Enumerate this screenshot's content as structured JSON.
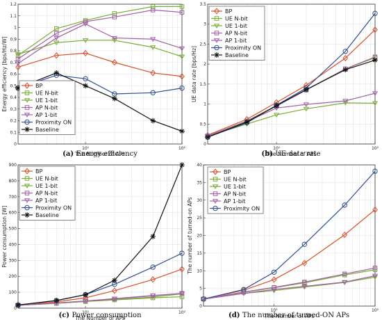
{
  "styles": {
    "BP": {
      "color": "#d7502a",
      "marker": "diamond"
    },
    "UE N-bit": {
      "color": "#77ac30",
      "marker": "square"
    },
    "UE 1-bit": {
      "color": "#77ac30",
      "marker": "tri-down"
    },
    "AP N-bit": {
      "color": "#a05fa6",
      "marker": "square"
    },
    "AP 1-bit": {
      "color": "#a05fa6",
      "marker": "tri-down"
    },
    "Proximity ON": {
      "color": "#2e4e8c",
      "marker": "circle"
    },
    "Baseline": {
      "color": "#111111",
      "marker": "star"
    }
  },
  "chart_data": [
    {
      "type": "line",
      "caption_letter": "(a)",
      "caption_text": "Energy efficiency",
      "xlabel": "The Number of APs",
      "ylabel": "Energy efficiency [bps/Hz/W]",
      "xscale": "log",
      "xlim": [
        2,
        100
      ],
      "ylim": [
        0,
        1.2
      ],
      "xticks": [
        {
          "v": 10,
          "label": "10¹"
        },
        {
          "v": 100,
          "label": "10²"
        }
      ],
      "yticks": [
        0,
        0.1,
        0.2,
        0.3,
        0.4,
        0.5,
        0.6,
        0.7,
        0.8,
        0.9,
        1,
        1.1,
        1.2
      ],
      "grid": true,
      "legend_position": "bottom-left",
      "x": [
        2,
        5,
        10,
        20,
        50,
        100
      ],
      "series": [
        {
          "name": "BP",
          "values": [
            0.66,
            0.76,
            0.78,
            0.7,
            0.61,
            0.58
          ]
        },
        {
          "name": "UE N-bit",
          "values": [
            0.76,
            0.99,
            1.06,
            1.12,
            1.18,
            1.18
          ]
        },
        {
          "name": "UE 1-bit",
          "values": [
            0.77,
            0.87,
            0.89,
            0.89,
            0.83,
            0.75
          ]
        },
        {
          "name": "AP N-bit",
          "values": [
            0.73,
            0.95,
            1.05,
            1.09,
            1.15,
            1.13
          ]
        },
        {
          "name": "AP 1-bit",
          "values": [
            0.69,
            0.91,
            1.03,
            0.91,
            0.9,
            0.82
          ]
        },
        {
          "name": "Proximity ON",
          "values": [
            0.48,
            0.59,
            0.56,
            0.43,
            0.44,
            0.48
          ]
        },
        {
          "name": "Baseline",
          "values": [
            0.48,
            0.61,
            0.5,
            0.39,
            0.2,
            0.11
          ]
        }
      ]
    },
    {
      "type": "line",
      "caption_letter": "(b)",
      "caption_text": "UE data rate",
      "xlabel": "The Number of APs",
      "ylabel": "UE data rate [bps/Hz]",
      "xscale": "log",
      "xlim": [
        2,
        100
      ],
      "ylim": [
        0,
        3.5
      ],
      "xticks": [
        {
          "v": 10,
          "label": "10¹"
        },
        {
          "v": 100,
          "label": "10²"
        }
      ],
      "yticks": [
        0,
        0.5,
        1,
        1.5,
        2,
        2.5,
        3,
        3.5
      ],
      "grid": true,
      "legend_position": "top-left",
      "x": [
        2,
        5,
        10,
        20,
        50,
        100
      ],
      "series": [
        {
          "name": "BP",
          "values": [
            0.22,
            0.62,
            1.04,
            1.47,
            2.15,
            2.86
          ]
        },
        {
          "name": "UE N-bit",
          "values": [
            0.2,
            0.58,
            0.96,
            1.36,
            1.88,
            2.16
          ]
        },
        {
          "name": "UE 1-bit",
          "values": [
            0.2,
            0.5,
            0.73,
            0.88,
            1.03,
            1.02
          ]
        },
        {
          "name": "AP N-bit",
          "values": [
            0.2,
            0.57,
            0.95,
            1.35,
            1.88,
            2.18
          ]
        },
        {
          "name": "AP 1-bit",
          "values": [
            0.2,
            0.56,
            0.9,
            0.99,
            1.08,
            1.27
          ]
        },
        {
          "name": "Proximity ON",
          "values": [
            0.17,
            0.53,
            0.97,
            1.4,
            2.32,
            3.27
          ]
        },
        {
          "name": "Baseline",
          "values": [
            0.17,
            0.55,
            0.96,
            1.36,
            1.86,
            2.1
          ]
        }
      ]
    },
    {
      "type": "line",
      "caption_letter": "(c)",
      "caption_text": "Power consumption",
      "xlabel": "The Number of APs",
      "ylabel": "Power consumption [W]",
      "xscale": "log",
      "xlim": [
        2,
        100
      ],
      "ylim": [
        0,
        900
      ],
      "xticks": [
        {
          "v": 10,
          "label": "10¹"
        },
        {
          "v": 100,
          "label": "10²"
        }
      ],
      "yticks": [
        0,
        100,
        200,
        300,
        400,
        500,
        600,
        700,
        800,
        900
      ],
      "grid": true,
      "legend_position": "top-left",
      "x": [
        2,
        5,
        10,
        20,
        50,
        100
      ],
      "series": [
        {
          "name": "BP",
          "values": [
            18,
            40,
            65,
            110,
            180,
            245
          ]
        },
        {
          "name": "UE N-bit",
          "values": [
            18,
            30,
            42,
            52,
            65,
            72
          ]
        },
        {
          "name": "UE 1-bit",
          "values": [
            18,
            32,
            42,
            53,
            70,
            90
          ]
        },
        {
          "name": "AP N-bit",
          "values": [
            18,
            32,
            45,
            58,
            78,
            93
          ]
        },
        {
          "name": "AP 1-bit",
          "values": [
            18,
            33,
            45,
            60,
            80,
            92
          ]
        },
        {
          "name": "Proximity ON",
          "values": [
            20,
            48,
            85,
            150,
            258,
            345
          ]
        },
        {
          "name": "Baseline",
          "values": [
            20,
            48,
            85,
            175,
            450,
            900
          ]
        }
      ]
    },
    {
      "type": "line",
      "caption_letter": "(d)",
      "caption_text": "The number of turned-ON APs",
      "xlabel": "The Number of APs",
      "ylabel": "The number of turned-on APs",
      "xscale": "log",
      "xlim": [
        2,
        100
      ],
      "ylim": [
        0,
        40
      ],
      "xticks": [
        {
          "v": 10,
          "label": "10¹"
        },
        {
          "v": 100,
          "label": "10²"
        }
      ],
      "yticks": [
        0,
        5,
        10,
        15,
        20,
        25,
        30,
        35,
        40
      ],
      "grid": true,
      "legend_position": "top-left",
      "x": [
        2,
        5,
        10,
        20,
        50,
        100
      ],
      "series": [
        {
          "name": "BP",
          "values": [
            2,
            4.5,
            7.5,
            12.2,
            20.2,
            27.3
          ]
        },
        {
          "name": "UE N-bit",
          "values": [
            2,
            3.9,
            5.2,
            6.6,
            8.8,
            10.3
          ]
        },
        {
          "name": "UE 1-bit",
          "values": [
            2,
            3.6,
            4.4,
            5.4,
            6.7,
            8.2
          ]
        },
        {
          "name": "AP N-bit",
          "values": [
            2,
            4.0,
            5.3,
            6.8,
            9.1,
            10.8
          ]
        },
        {
          "name": "AP 1-bit",
          "values": [
            2,
            3.6,
            4.7,
            5.6,
            6.8,
            8.6
          ]
        },
        {
          "name": "Proximity ON",
          "values": [
            2,
            4.7,
            9.6,
            17.5,
            28.6,
            38.2
          ]
        }
      ]
    }
  ]
}
